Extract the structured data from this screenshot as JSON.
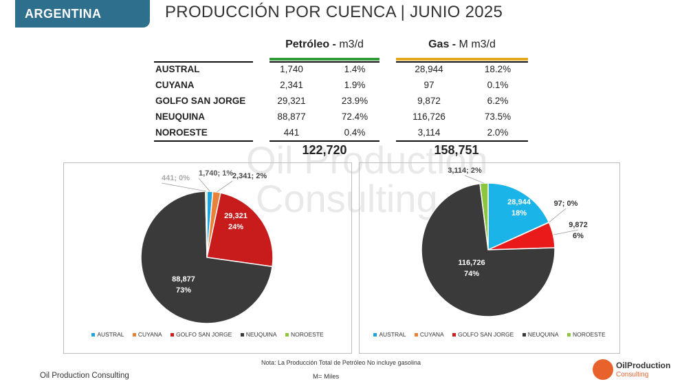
{
  "header": {
    "badge": "ARGENTINA",
    "title": "PRODUCCIÓN POR CUENCA | JUNIO 2025"
  },
  "watermark": {
    "line1": "Oil Production",
    "line2": "Consulting"
  },
  "table": {
    "oil_header": {
      "name": "Petróleo -",
      "unit": " m3/d",
      "color": "#2e9a3a"
    },
    "gas_header": {
      "name": "Gas -",
      "unit": " M m3/d",
      "color": "#e3a81a"
    },
    "rows": [
      {
        "basin": "AUSTRAL",
        "oil": "1,740",
        "oil_pct": "1.4%",
        "gas": "28,944",
        "gas_pct": "18.2%"
      },
      {
        "basin": "CUYANA",
        "oil": "2,341",
        "oil_pct": "1.9%",
        "gas": "97",
        "gas_pct": "0.1%"
      },
      {
        "basin": "GOLFO SAN JORGE",
        "oil": "29,321",
        "oil_pct": "23.9%",
        "gas": "9,872",
        "gas_pct": "6.2%"
      },
      {
        "basin": "NEUQUINA",
        "oil": "88,877",
        "oil_pct": "72.4%",
        "gas": "116,726",
        "gas_pct": "73.5%"
      },
      {
        "basin": "NOROESTE",
        "oil": "441",
        "oil_pct": "0.4%",
        "gas": "3,114",
        "gas_pct": "2.0%"
      }
    ],
    "oil_total": "122,720",
    "gas_total": "158,751"
  },
  "chart_data": [
    {
      "type": "pie",
      "categories": [
        "AUSTRAL",
        "CUYANA",
        "GOLFO SAN JORGE",
        "NEUQUINA",
        "NOROESTE"
      ],
      "values": [
        1740,
        2341,
        29321,
        88877,
        441
      ],
      "labels": [
        "1,740; 1%",
        "2,341; 2%",
        "29,321\n24%",
        "88,877\n73%",
        "441; 0%"
      ],
      "colors": [
        "#1fa3dc",
        "#e8823a",
        "#c81c1c",
        "#3a3a3a",
        "#8cc63f"
      ]
    },
    {
      "type": "pie",
      "categories": [
        "AUSTRAL",
        "CUYANA",
        "GOLFO SAN JORGE",
        "NEUQUINA",
        "NOROESTE"
      ],
      "values": [
        28944,
        97,
        9872,
        116726,
        3114
      ],
      "labels": [
        "28,944\n18%",
        "97; 0%",
        "9,872\n6%",
        "116,726\n74%",
        "3,114; 2%"
      ],
      "colors": [
        "#1ab4e8",
        "#e8823a",
        "#e81a1a",
        "#3a3a3a",
        "#8cc63f"
      ]
    }
  ],
  "legend": [
    {
      "label": "AUSTRAL",
      "color": "#1fa3dc"
    },
    {
      "label": "CUYANA",
      "color": "#e8823a"
    },
    {
      "label": "GOLFO SAN JORGE",
      "color": "#d01c1c"
    },
    {
      "label": "NEUQUINA",
      "color": "#3a3a3a"
    },
    {
      "label": "NOROESTE",
      "color": "#8cc63f"
    }
  ],
  "footer": {
    "note": "Nota: La Producción Total de Petróleo No incluye gasolina",
    "company": "Oil Production Consulting",
    "miles": "M= Miles",
    "logo_line1": "OilProduction",
    "logo_line2": "Consulting"
  }
}
